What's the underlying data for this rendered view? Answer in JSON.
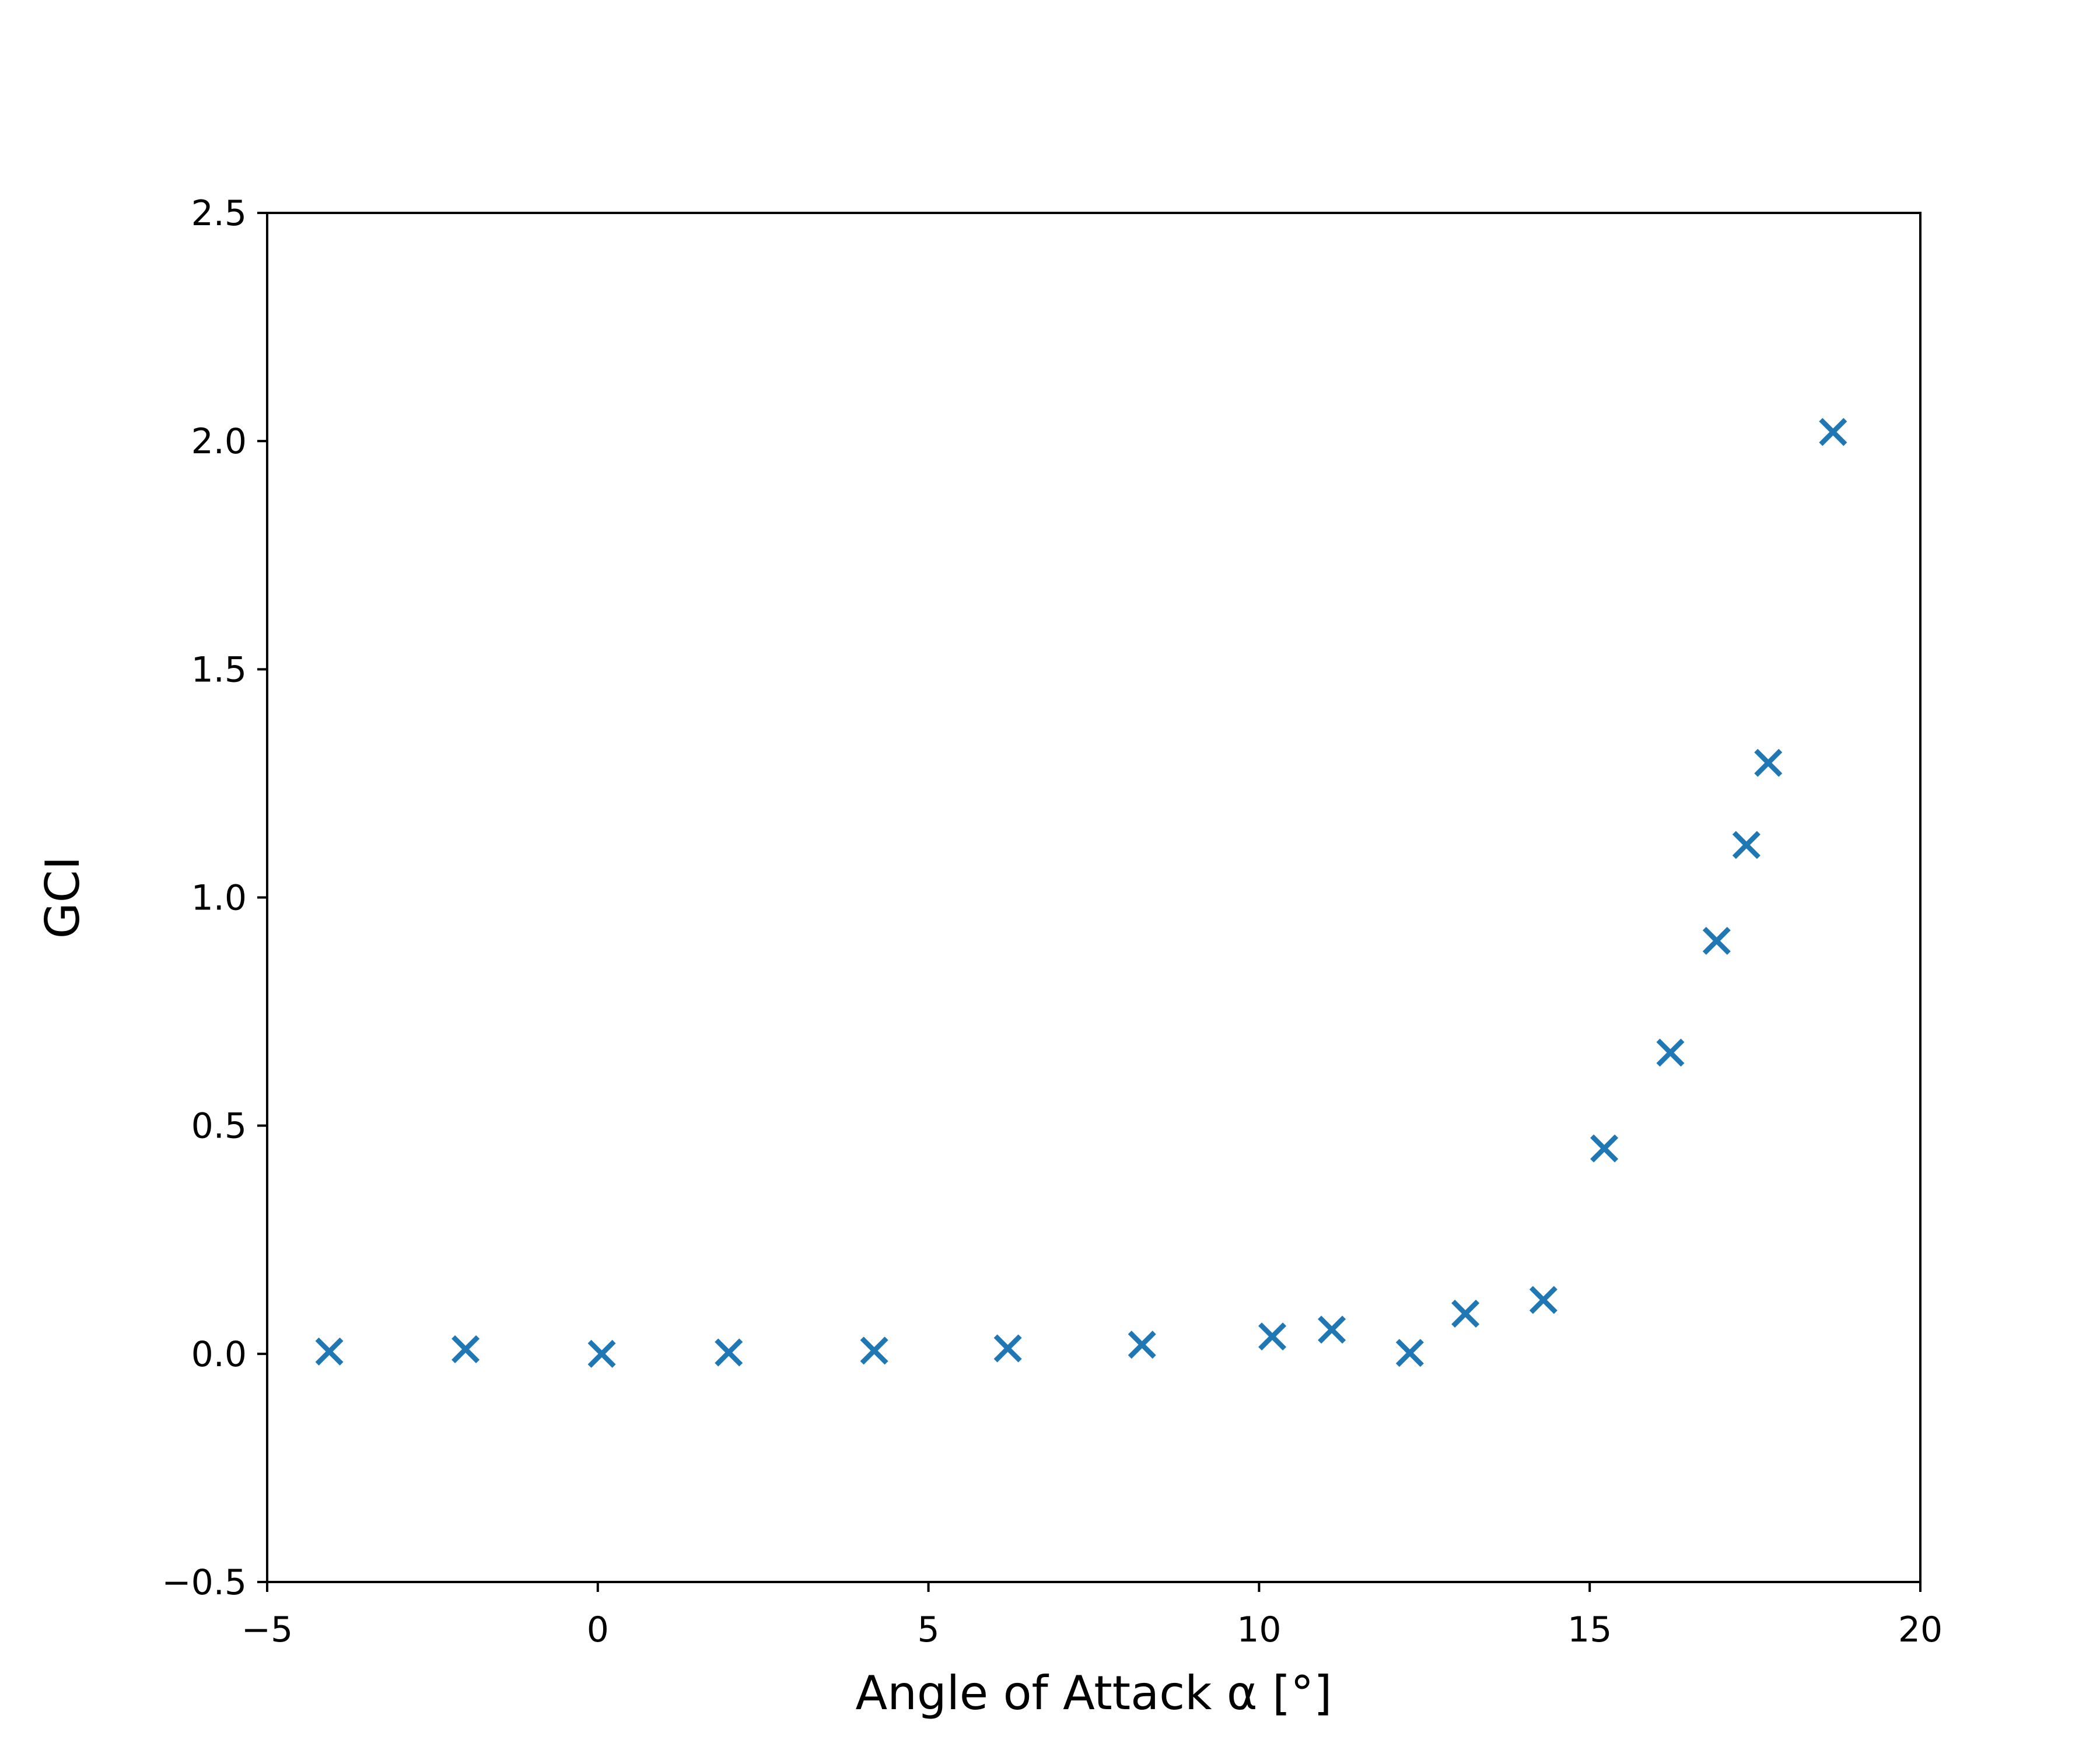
{
  "chart_data": {
    "type": "scatter",
    "title": "",
    "xlabel": "Angle of Attack α [°]",
    "ylabel": "GCI",
    "xlim": [
      -5,
      20
    ],
    "ylim": [
      -0.5,
      2.5
    ],
    "xticks": [
      -5,
      0,
      5,
      10,
      15,
      20
    ],
    "xtick_labels": [
      "−5",
      "0",
      "5",
      "10",
      "15",
      "20"
    ],
    "yticks": [
      -0.5,
      0.0,
      0.5,
      1.0,
      1.5,
      2.0,
      2.5
    ],
    "ytick_labels": [
      "−0.5",
      "0.0",
      "0.5",
      "1.0",
      "1.5",
      "2.0",
      "2.5"
    ],
    "grid": false,
    "legend": "none",
    "marker": "x",
    "color": "#1f77b4",
    "series": [
      {
        "x": [
          -4.06,
          -2.0,
          0.06,
          1.98,
          4.18,
          6.2,
          8.23,
          10.2,
          11.1,
          12.28,
          13.12,
          14.3,
          15.22,
          16.22,
          16.92,
          17.37,
          17.7,
          18.68
        ],
        "y": [
          0.005,
          0.01,
          0.0,
          0.003,
          0.007,
          0.012,
          0.02,
          0.038,
          0.053,
          0.002,
          0.088,
          0.118,
          0.45,
          0.66,
          0.905,
          1.115,
          1.295,
          2.02
        ]
      }
    ]
  }
}
